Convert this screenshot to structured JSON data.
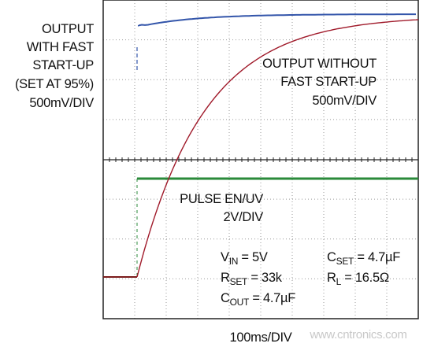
{
  "left_label": {
    "lines": [
      "OUTPUT",
      "WITH FAST",
      "START-UP",
      "(SET AT 95%)",
      "500mV/DIV"
    ]
  },
  "right_label": {
    "lines": [
      "OUTPUT WITHOUT",
      "FAST START-UP",
      "500mV/DIV"
    ]
  },
  "pulse_label": {
    "lines": [
      "PULSE EN/UV",
      "2V/DIV"
    ]
  },
  "conditions": [
    {
      "symbol": "V",
      "sub": "IN",
      "value": " = 5V"
    },
    {
      "symbol": "R",
      "sub": "SET",
      "value": " = 33k"
    },
    {
      "symbol": "C",
      "sub": "OUT",
      "value": " = 4.7µF"
    },
    {
      "symbol": "C",
      "sub": "SET",
      "value": " = 4.7µF"
    },
    {
      "symbol": "R",
      "sub": "L",
      "value": " = 16.5Ω"
    }
  ],
  "x_label": "100ms/DIV",
  "watermark": "www.cntronics.com"
}
